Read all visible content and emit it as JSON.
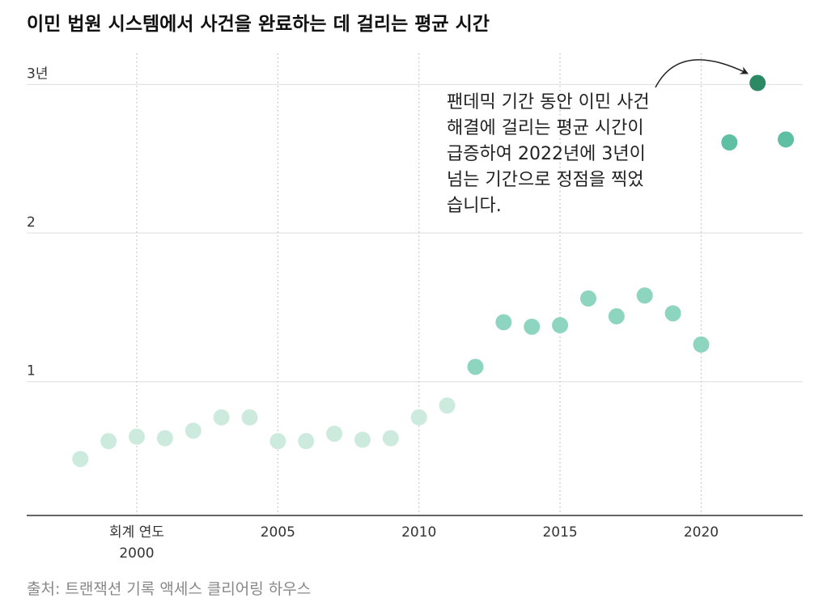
{
  "title": "이민 법원 시스템에서 사건을 완료하는 데 걸리는 평균 시간",
  "source": "출처: 트랜잭션 기록 액세스 클리어링 하우스",
  "colors": {
    "light": "#cdeadf",
    "mid": "#8ed5bf",
    "strong": "#5fbfa3",
    "highlight": "#2b8a63",
    "grid": "#dddddd",
    "axis": "#333333",
    "vline": "#bbbbbb"
  },
  "chart_data": {
    "type": "scatter",
    "xlabel": "회계 연도",
    "ylabel": "",
    "x_ticks": [
      {
        "value": 2000,
        "label": "2000"
      },
      {
        "value": 2005,
        "label": "2005"
      },
      {
        "value": 2010,
        "label": "2010"
      },
      {
        "value": 2015,
        "label": "2015"
      },
      {
        "value": 2020,
        "label": "2020"
      }
    ],
    "y_ticks": [
      {
        "value": 1,
        "label": "1"
      },
      {
        "value": 2,
        "label": "2"
      },
      {
        "value": 3,
        "label": "3년"
      }
    ],
    "xlim": [
      1996.1,
      2023.6
    ],
    "ylim": [
      0.1,
      3.1
    ],
    "grid": true,
    "points": [
      {
        "x": 1998,
        "y": 0.48
      },
      {
        "x": 1999,
        "y": 0.6
      },
      {
        "x": 2000,
        "y": 0.63
      },
      {
        "x": 2001,
        "y": 0.62
      },
      {
        "x": 2002,
        "y": 0.67
      },
      {
        "x": 2003,
        "y": 0.76
      },
      {
        "x": 2004,
        "y": 0.76
      },
      {
        "x": 2005,
        "y": 0.6
      },
      {
        "x": 2006,
        "y": 0.6
      },
      {
        "x": 2007,
        "y": 0.65
      },
      {
        "x": 2008,
        "y": 0.61
      },
      {
        "x": 2009,
        "y": 0.62
      },
      {
        "x": 2010,
        "y": 0.76
      },
      {
        "x": 2011,
        "y": 0.84
      },
      {
        "x": 2012,
        "y": 1.1
      },
      {
        "x": 2013,
        "y": 1.4
      },
      {
        "x": 2014,
        "y": 1.37
      },
      {
        "x": 2015,
        "y": 1.38
      },
      {
        "x": 2016,
        "y": 1.56
      },
      {
        "x": 2017,
        "y": 1.44
      },
      {
        "x": 2018,
        "y": 1.58
      },
      {
        "x": 2019,
        "y": 1.46
      },
      {
        "x": 2020,
        "y": 1.25
      },
      {
        "x": 2021,
        "y": 2.61
      },
      {
        "x": 2022,
        "y": 3.01
      },
      {
        "x": 2023,
        "y": 2.63
      }
    ],
    "highlight_x": 2022,
    "annotation": {
      "lines": [
        "팬데믹 기간 동안 이민 사건",
        "해결에 걸리는 평균 시간이",
        "급증하여 2022년에 3년이",
        "넘는 기간으로 정점을 찍었",
        "습니다."
      ]
    }
  }
}
